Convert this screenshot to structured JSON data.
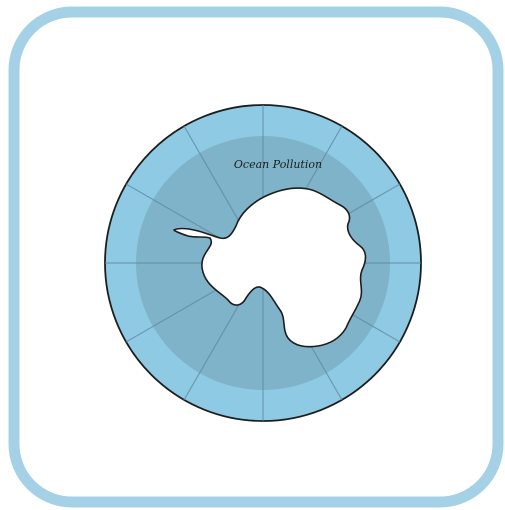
{
  "app_icon": {
    "label": "Ocean Pollution",
    "icon": "antarctica-ocean-map-icon",
    "colors": {
      "frame": "#a4d1e6",
      "card_background": "#ffffff",
      "outer_ring": "#8ecae4",
      "inner_disc": "#7fb3c9",
      "continent": "#ffffff",
      "outline": "#1d1d1d",
      "gridline": "#5f8aa0"
    }
  }
}
